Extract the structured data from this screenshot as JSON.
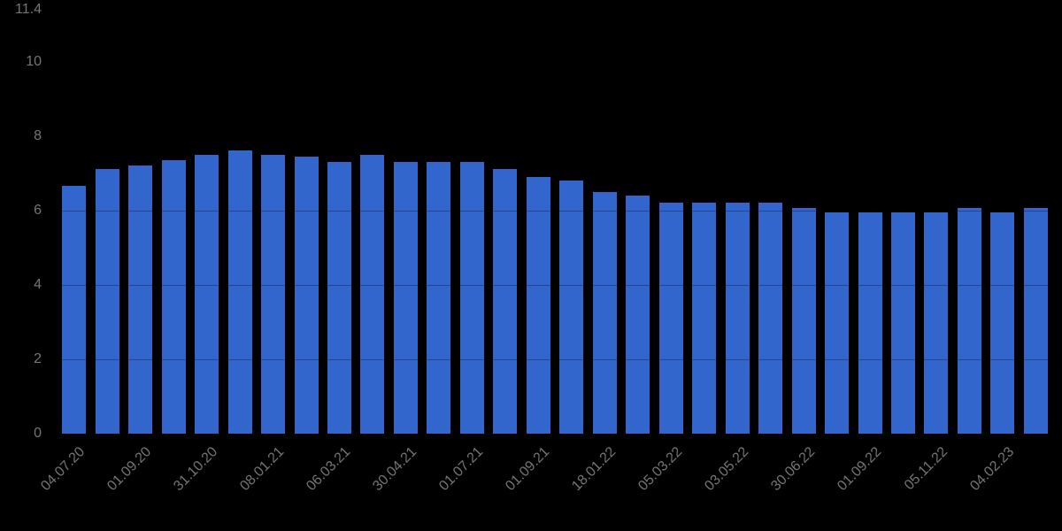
{
  "chart_data": {
    "type": "bar",
    "title": "",
    "categories": [
      "04.07.20",
      "",
      "01.09.20",
      "",
      "31.10.20",
      "",
      "08.01.21",
      "",
      "06.03.21",
      "",
      "30.04.21",
      "",
      "01.07.21",
      "",
      "01.09.21",
      "",
      "18.01.22",
      "",
      "05.03.22",
      "",
      "03.05.22",
      "",
      "30.06.22",
      "",
      "01.09.22",
      "",
      "05.11.22",
      "",
      "04.02.23",
      ""
    ],
    "values": [
      6.65,
      7.1,
      7.2,
      7.35,
      7.5,
      7.6,
      7.5,
      7.45,
      7.3,
      7.5,
      7.3,
      7.3,
      7.3,
      7.1,
      6.9,
      6.8,
      6.5,
      6.4,
      6.2,
      6.2,
      6.2,
      6.2,
      6.05,
      5.95,
      5.95,
      5.95,
      5.95,
      6.05,
      5.95,
      6.05
    ],
    "xlabel": "",
    "ylabel": "",
    "y_ticks": [
      0,
      2,
      4,
      6,
      8,
      10,
      11.4
    ],
    "y_tick_labels": [
      "0",
      "2",
      "4",
      "6",
      "8",
      "10",
      "11.4"
    ],
    "ylim": [
      0,
      11.4
    ],
    "legend_position": "none",
    "grid": "dark-overlay",
    "colors": {
      "bar": "#3366CC",
      "axis_label": "#757575",
      "background": "#000000"
    }
  }
}
